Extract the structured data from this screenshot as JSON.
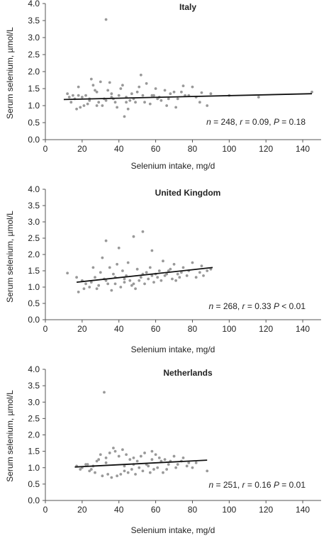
{
  "chart_data": [
    {
      "type": "scatter",
      "title": "Italy",
      "xlabel": "Selenium intake, mg/d",
      "ylabel": "Serum selenium, µmol/L",
      "xlim": [
        0,
        150
      ],
      "ylim": [
        0,
        4.0
      ],
      "x_ticks": [
        "0",
        "20",
        "40",
        "60",
        "80",
        "100",
        "120",
        "140"
      ],
      "y_ticks": [
        "0.0",
        "0.5",
        "1.0",
        "1.5",
        "2.0",
        "2.5",
        "3.0",
        "3.5",
        "4.0"
      ],
      "stats": {
        "n": "248",
        "r": "0.09",
        "p": "0.18",
        "sep1": ", ",
        "sep2": ", ",
        "p_op": " = "
      },
      "point_color": "#999999",
      "trend_line": {
        "x": [
          10,
          145
        ],
        "y": [
          1.18,
          1.35
        ]
      },
      "points": {
        "x": [
          33,
          52,
          25,
          30,
          35,
          18,
          42,
          55,
          60,
          65,
          70,
          75,
          80,
          85,
          90,
          100,
          116,
          145,
          12,
          14,
          16,
          20,
          22,
          24,
          28,
          32,
          36,
          38,
          40,
          44,
          46,
          48,
          50,
          54,
          58,
          62,
          66,
          68,
          72,
          78,
          84,
          88,
          15,
          19,
          23,
          27,
          31,
          37,
          41,
          45,
          49,
          53,
          57,
          61,
          43,
          26,
          34,
          17,
          21,
          29,
          39,
          47,
          63,
          71,
          76,
          13,
          18,
          24,
          28,
          33,
          36,
          44,
          51,
          59,
          67,
          74,
          82
        ],
        "y": [
          3.53,
          1.9,
          1.78,
          1.7,
          1.68,
          1.55,
          1.6,
          1.65,
          1.5,
          1.45,
          1.4,
          1.58,
          1.55,
          1.38,
          1.35,
          1.3,
          1.25,
          1.4,
          1.35,
          1.1,
          1.2,
          1.25,
          1.3,
          1.15,
          1.4,
          1.2,
          1.35,
          1.1,
          1.3,
          1.25,
          1.15,
          1.2,
          1.4,
          1.1,
          1.3,
          1.25,
          1.0,
          1.35,
          1.2,
          1.3,
          1.1,
          1.0,
          1.3,
          0.95,
          1.05,
          1.45,
          1.0,
          1.2,
          1.5,
          0.9,
          1.1,
          1.3,
          1.05,
          1.2,
          0.68,
          1.6,
          1.45,
          0.9,
          1.0,
          1.1,
          0.95,
          1.35,
          1.15,
          0.95,
          1.3,
          1.25,
          1.3,
          1.2,
          1.0,
          1.15,
          1.25,
          1.1,
          1.55,
          1.3,
          1.2,
          1.4,
          1.25
        ]
      }
    },
    {
      "type": "scatter",
      "title": "United Kingdom",
      "xlabel": "Selenium intake, mg/d",
      "ylabel": "Serum selenium, µmol/L",
      "xlim": [
        0,
        150
      ],
      "ylim": [
        0,
        4.0
      ],
      "x_ticks": [
        "0",
        "20",
        "40",
        "60",
        "80",
        "100",
        "120",
        "140"
      ],
      "y_ticks": [
        "0.0",
        "0.5",
        "1.0",
        "1.5",
        "2.0",
        "2.5",
        "3.0",
        "3.5",
        "4.0"
      ],
      "stats": {
        "n": "268",
        "r": "0.33",
        "p": "0.01",
        "sep1": ", ",
        "sep2": " ",
        "p_op": " < "
      },
      "point_color": "#999999",
      "trend_line": {
        "x": [
          17,
          91
        ],
        "y": [
          1.15,
          1.6
        ]
      },
      "points": {
        "x": [
          53,
          33,
          48,
          40,
          58,
          12,
          17,
          20,
          22,
          25,
          27,
          30,
          32,
          35,
          37,
          38,
          42,
          44,
          46,
          50,
          52,
          55,
          57,
          60,
          62,
          65,
          68,
          70,
          72,
          75,
          78,
          80,
          82,
          85,
          88,
          90,
          18,
          24,
          28,
          34,
          36,
          41,
          43,
          47,
          49,
          51,
          54,
          56,
          59,
          61,
          63,
          66,
          69,
          74,
          77,
          31,
          39,
          45,
          26,
          21,
          64,
          71,
          84,
          86,
          29,
          33,
          38,
          43,
          48,
          53,
          58,
          67,
          73
        ],
        "y": [
          2.7,
          2.42,
          2.55,
          2.2,
          2.12,
          1.43,
          1.3,
          1.2,
          1.1,
          1.15,
          1.3,
          1.45,
          1.25,
          1.6,
          1.4,
          1.1,
          1.5,
          1.35,
          1.2,
          1.55,
          1.3,
          1.45,
          1.6,
          1.4,
          1.5,
          1.35,
          1.55,
          1.7,
          1.4,
          1.6,
          1.5,
          1.75,
          1.3,
          1.65,
          1.5,
          1.55,
          0.85,
          1.0,
          0.95,
          1.1,
          0.9,
          1.0,
          1.15,
          1.05,
          0.95,
          1.2,
          1.1,
          1.25,
          1.15,
          1.3,
          1.2,
          1.4,
          1.25,
          1.45,
          1.35,
          1.9,
          1.7,
          1.75,
          1.6,
          0.95,
          1.8,
          1.2,
          1.45,
          1.35,
          1.05,
          1.2,
          1.3,
          1.25,
          1.1,
          1.4,
          1.35,
          1.5,
          1.3
        ]
      }
    },
    {
      "type": "scatter",
      "title": "Netherlands",
      "xlabel": "Selenium intake, mg/d",
      "ylabel": "Serum selenium, µmol/L",
      "xlim": [
        0,
        150
      ],
      "ylim": [
        0,
        4.0
      ],
      "x_ticks": [
        "0",
        "20",
        "40",
        "60",
        "80",
        "100",
        "120",
        "140"
      ],
      "y_ticks": [
        "0.0",
        "0.5",
        "1.0",
        "1.5",
        "2.0",
        "2.5",
        "3.0",
        "3.5",
        "4.0"
      ],
      "stats": {
        "n": "251",
        "r": "0.16",
        "p": "0.01",
        "sep1": ",  ",
        "sep2": "  ",
        "p_op": " = "
      },
      "point_color": "#999999",
      "trend_line": {
        "x": [
          16,
          88
        ],
        "y": [
          1.02,
          1.23
        ]
      },
      "points": {
        "x": [
          32,
          17,
          20,
          22,
          25,
          28,
          30,
          33,
          35,
          38,
          40,
          42,
          44,
          46,
          48,
          50,
          52,
          55,
          58,
          60,
          62,
          65,
          68,
          70,
          72,
          75,
          78,
          80,
          88,
          24,
          27,
          31,
          34,
          36,
          39,
          41,
          43,
          45,
          47,
          49,
          51,
          53,
          56,
          59,
          61,
          64,
          67,
          37,
          29,
          26,
          54,
          57,
          63,
          66,
          74,
          82,
          19,
          23,
          33,
          43,
          48,
          58,
          71,
          77
        ],
        "y": [
          3.3,
          1.05,
          1.0,
          1.1,
          0.95,
          1.2,
          1.4,
          1.3,
          1.45,
          1.5,
          1.35,
          1.55,
          1.4,
          1.25,
          1.3,
          1.2,
          1.35,
          1.1,
          1.5,
          1.4,
          1.3,
          1.25,
          1.2,
          1.35,
          1.1,
          1.3,
          1.15,
          1.0,
          0.9,
          0.9,
          0.85,
          0.75,
          0.8,
          0.7,
          0.75,
          0.8,
          0.9,
          0.85,
          0.95,
          0.8,
          1.0,
          0.9,
          1.05,
          0.95,
          1.0,
          0.85,
          1.1,
          1.6,
          1.25,
          1.05,
          1.45,
          0.85,
          1.2,
          0.95,
          1.2,
          1.15,
          0.95,
          1.1,
          1.15,
          1.05,
          1.1,
          1.25,
          1.0,
          1.05
        ]
      }
    }
  ]
}
